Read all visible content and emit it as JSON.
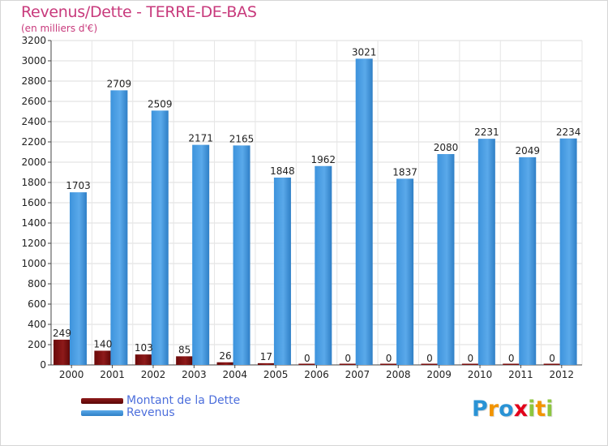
{
  "title": "Revenus/Dette - TERRE-DE-BAS",
  "subtitle": "(en milliers d'€)",
  "colors": {
    "dette": "#7a0d0d",
    "revenus": "#3d93dc",
    "title": "#c83a7c",
    "legend_text": "#4d6fdc"
  },
  "legend": [
    {
      "label": "Montant de la Dette",
      "color": "#7a0d0d"
    },
    {
      "label": "Revenus",
      "color": "#3d93dc"
    }
  ],
  "logo": {
    "text": "Proxiti",
    "letters": [
      {
        "ch": "P",
        "color": "#2a93d5"
      },
      {
        "ch": "r",
        "color": "#f29400"
      },
      {
        "ch": "o",
        "color": "#2a93d5"
      },
      {
        "ch": "x",
        "color": "#e2001a"
      },
      {
        "ch": "i",
        "color": "#8dc63f"
      },
      {
        "ch": "t",
        "color": "#f29400"
      },
      {
        "ch": "i",
        "color": "#8dc63f"
      }
    ]
  },
  "chart_data": {
    "type": "bar",
    "title": "Revenus/Dette - TERRE-DE-BAS",
    "subtitle": "(en milliers d'€)",
    "categories": [
      "2000",
      "2001",
      "2002",
      "2003",
      "2004",
      "2005",
      "2006",
      "2007",
      "2008",
      "2009",
      "2010",
      "2011",
      "2012"
    ],
    "series": [
      {
        "name": "Montant de la Dette",
        "values": [
          249,
          140,
          103,
          85,
          26,
          17,
          0,
          0,
          0,
          0,
          0,
          0,
          0
        ]
      },
      {
        "name": "Revenus",
        "values": [
          1703,
          2709,
          2509,
          2171,
          2165,
          1848,
          1962,
          3021,
          1837,
          2080,
          2231,
          2049,
          2234
        ]
      }
    ],
    "ylim": [
      0,
      3200
    ],
    "yticks": [
      0,
      200,
      400,
      600,
      800,
      1000,
      1200,
      1400,
      1600,
      1800,
      2000,
      2200,
      2400,
      2600,
      2800,
      3000,
      3200
    ],
    "grid": true,
    "legend_position": "bottom-left"
  }
}
